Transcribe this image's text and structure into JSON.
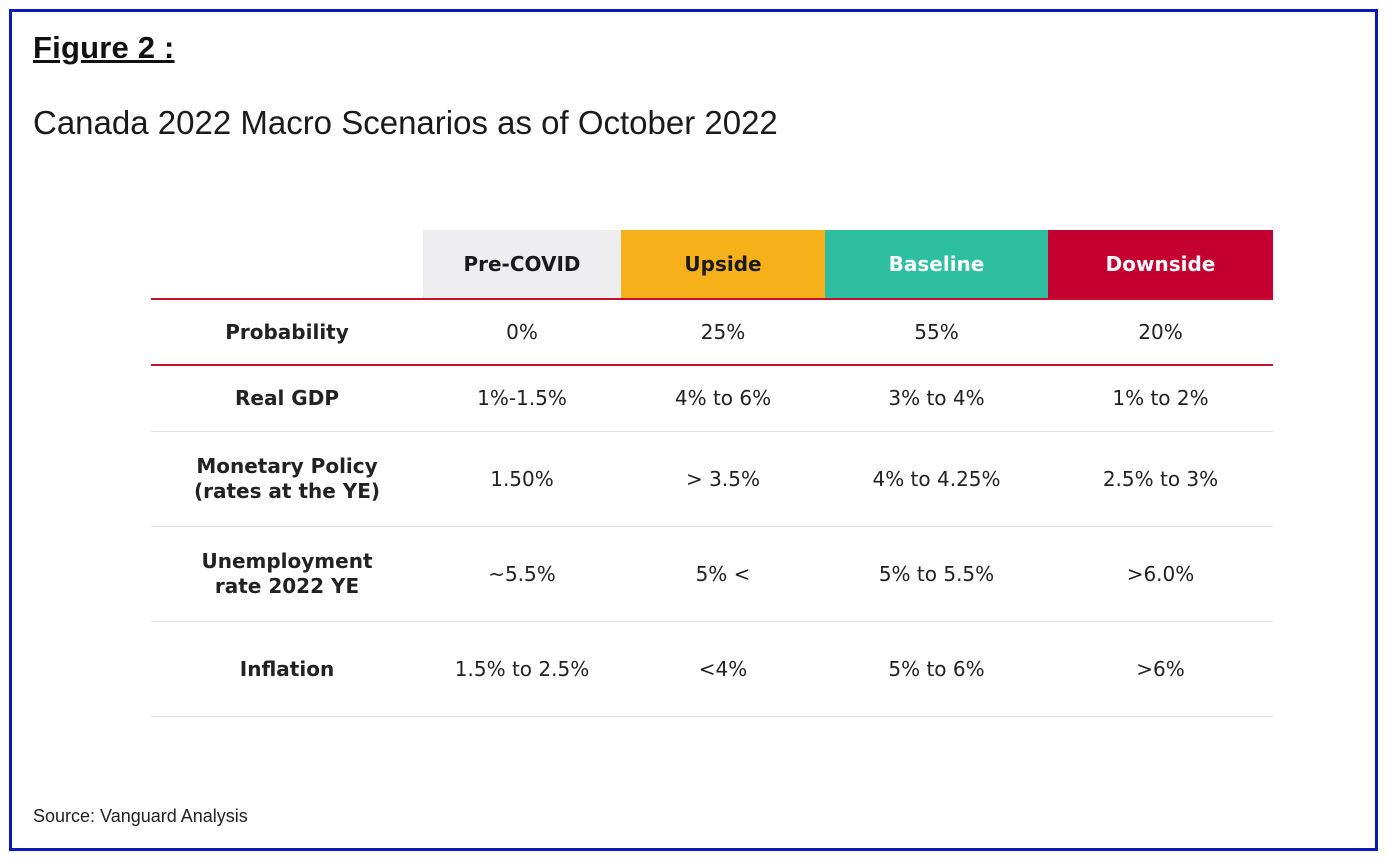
{
  "figure_label": "Figure 2 :",
  "subtitle": "Canada 2022 Macro Scenarios as of October 2022",
  "source": "Source: Vanguard Analysis",
  "colors": {
    "border": "#0a1ab8",
    "pre_covid": "#eeeef0",
    "upside": "#f5b01a",
    "baseline": "#2dbfa0",
    "downside": "#c3002f",
    "rule": "#c8102e"
  },
  "table": {
    "headers": [
      "",
      "Pre-COVID",
      "Upside",
      "Baseline",
      "Downside"
    ],
    "rows": [
      {
        "label": "Probability",
        "cells": [
          "0%",
          "25%",
          "55%",
          "20%"
        ]
      },
      {
        "label": "Real GDP",
        "cells": [
          "1%-1.5%",
          "4% to 6%",
          "3% to 4%",
          "1% to 2%"
        ]
      },
      {
        "label_line1": "Monetary Policy",
        "label_line2": "(rates at the YE)",
        "cells": [
          "1.50%",
          "> 3.5%",
          "4% to 4.25%",
          "2.5% to 3%"
        ]
      },
      {
        "label_line1": "Unemployment",
        "label_line2": "rate 2022 YE",
        "cells": [
          "~5.5%",
          "5% <",
          "5% to 5.5%",
          ">6.0%"
        ]
      },
      {
        "label": "Inflation",
        "cells": [
          "1.5% to 2.5%",
          "<4%",
          "5% to 6%",
          ">6%"
        ]
      }
    ]
  }
}
